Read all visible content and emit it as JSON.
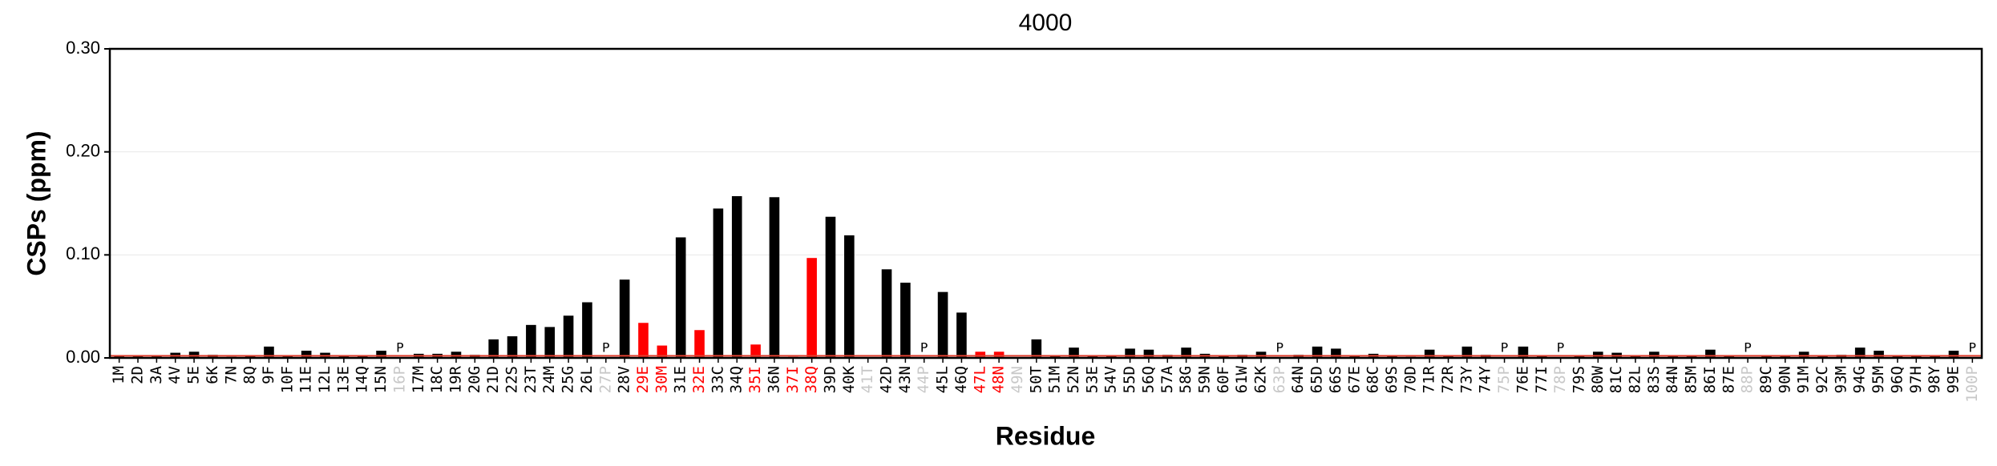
{
  "chart_data": {
    "type": "bar",
    "title": "4000",
    "x_label": "Residue",
    "y_label": "CSPs (ppm)",
    "categories": [
      "1M",
      "2D",
      "3A",
      "4V",
      "5E",
      "6K",
      "7N",
      "8Q",
      "9F",
      "10F",
      "11E",
      "12L",
      "13E",
      "14Q",
      "15N",
      "16P",
      "17M",
      "18C",
      "19R",
      "20G",
      "21D",
      "22S",
      "23T",
      "24M",
      "25G",
      "26L",
      "27P",
      "28V",
      "29E",
      "30M",
      "31E",
      "32E",
      "33C",
      "34Q",
      "35I",
      "36N",
      "37I",
      "38Q",
      "39D",
      "40K",
      "41T",
      "42D",
      "43N",
      "44P",
      "45L",
      "46Q",
      "47L",
      "48N",
      "49N",
      "50T",
      "51M",
      "52N",
      "53E",
      "54V",
      "55D",
      "56Q",
      "57A",
      "58G",
      "59N",
      "60F",
      "61W",
      "62K",
      "63P",
      "64N",
      "65D",
      "66S",
      "67E",
      "68C",
      "69S",
      "70D",
      "71R",
      "72R",
      "73Y",
      "74Y",
      "75P",
      "76E",
      "77I",
      "78P",
      "79S",
      "80W",
      "81C",
      "82L",
      "83S",
      "84N",
      "85M",
      "86I",
      "87E",
      "88P",
      "89C",
      "90N",
      "91M",
      "92C",
      "93M",
      "94G",
      "95M",
      "96Q",
      "97H",
      "98Y",
      "99E",
      "100P"
    ],
    "values": [
      0.002,
      0.002,
      0.002,
      0.005,
      0.006,
      0.003,
      0.001,
      0.002,
      0.011,
      0.002,
      0.007,
      0.005,
      0.002,
      0.002,
      0.007,
      null,
      0.004,
      0.004,
      0.006,
      0.003,
      0.018,
      0.021,
      0.032,
      0.03,
      0.041,
      0.054,
      null,
      0.076,
      0.034,
      0.012,
      0.117,
      0.027,
      0.145,
      0.157,
      0.013,
      0.156,
      0.001,
      0.097,
      0.137,
      0.119,
      null,
      0.086,
      0.073,
      null,
      0.064,
      0.044,
      0.006,
      0.006,
      null,
      0.018,
      0.002,
      0.01,
      0.002,
      0.002,
      0.009,
      0.008,
      0.003,
      0.01,
      0.004,
      0.002,
      0.003,
      0.006,
      null,
      0.003,
      0.011,
      0.009,
      0.002,
      0.004,
      0.002,
      0.001,
      0.008,
      0.002,
      0.011,
      0.003,
      null,
      0.011,
      0.002,
      null,
      0.002,
      0.006,
      0.005,
      0.002,
      0.006,
      0.002,
      0.002,
      0.008,
      0.002,
      null,
      0.002,
      0.002,
      0.006,
      0.002,
      0.003,
      0.01,
      0.007,
      0.002,
      0.002,
      0.002,
      0.007,
      null
    ],
    "color": "#000000",
    "highlight_color": "#ff0000",
    "missing_color": "#c8c8c8",
    "highlighted": [
      "29E",
      "30M",
      "32E",
      "35I",
      "37I",
      "38Q",
      "47L",
      "48N"
    ],
    "annotations": [
      {
        "text": "P",
        "category": "16P"
      },
      {
        "text": "P",
        "category": "27P"
      },
      {
        "text": "P",
        "category": "44P"
      },
      {
        "text": "P",
        "category": "63P"
      },
      {
        "text": "P",
        "category": "75P"
      },
      {
        "text": "P",
        "category": "78P"
      },
      {
        "text": "P",
        "category": "88P"
      },
      {
        "text": "P",
        "category": "100P"
      }
    ],
    "hline": {
      "value": 0.002,
      "color": "#e04030"
    },
    "ylim": [
      0,
      0.3
    ],
    "yticks": [
      {
        "value": 0,
        "label": "0.00"
      },
      {
        "value": 0.1,
        "label": "0.10"
      },
      {
        "value": 0.2,
        "label": "0.20"
      },
      {
        "value": 0.3,
        "label": "0.30"
      }
    ],
    "grid": true
  }
}
